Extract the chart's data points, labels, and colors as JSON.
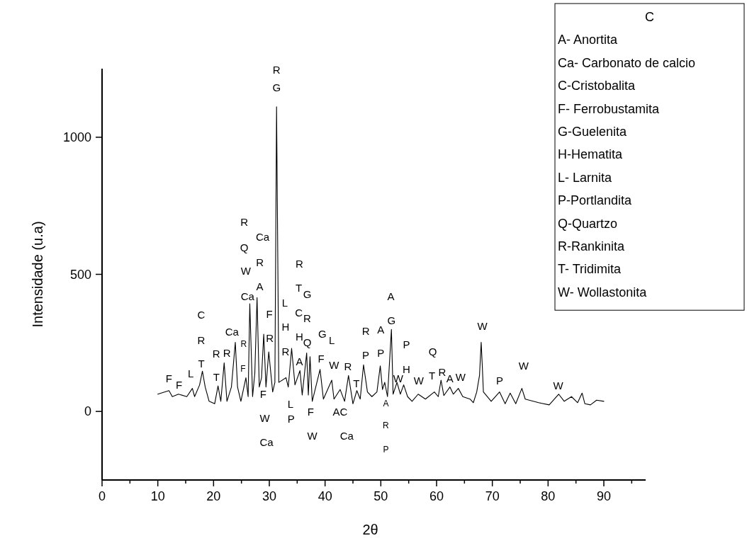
{
  "chart_data": {
    "type": "line",
    "xlabel": "2θ",
    "ylabel": "Intensidade (u.a)",
    "xlim": [
      0,
      97.5
    ],
    "ylim": [
      -250,
      1250
    ],
    "xticks": [
      0,
      {
        "value": 5,
        "label": null
      },
      10,
      {
        "value": 15,
        "label": null
      },
      20,
      {
        "value": 25,
        "label": null
      },
      30,
      {
        "value": 35,
        "label": null
      },
      40,
      {
        "value": 45,
        "label": null
      },
      50,
      {
        "value": 55,
        "label": null
      },
      60,
      {
        "value": 65,
        "label": null
      },
      70,
      {
        "value": 75,
        "label": null
      },
      80,
      {
        "value": 85,
        "label": null
      },
      90,
      {
        "value": 95,
        "label": null
      }
    ],
    "yticks": [
      0,
      500,
      1000
    ],
    "grid": false,
    "marker": "none",
    "line_style": "solid",
    "series": [
      {
        "color": "#000000",
        "x": [
          10,
          12.0,
          12.6,
          13.7,
          15.2,
          16.2,
          16.6,
          17.5,
          18.0,
          18.5,
          19.2,
          20.2,
          20.8,
          21.3,
          21.9,
          22.4,
          23.2,
          23.9,
          24.3,
          24.9,
          25.8,
          26.2,
          26.5,
          27.0,
          27.4,
          27.8,
          28.2,
          28.6,
          29.0,
          29.4,
          29.9,
          30.6,
          31.0,
          31.3,
          31.7,
          33.0,
          33.4,
          34.0,
          34.6,
          35.5,
          35.9,
          36.7,
          37.0,
          37.3,
          37.7,
          39.1,
          39.7,
          41.2,
          41.6,
          42.7,
          43.5,
          44.2,
          45.0,
          45.7,
          46.3,
          46.9,
          47.6,
          48.4,
          49.3,
          49.9,
          50.3,
          50.7,
          51.2,
          51.9,
          52.2,
          52.9,
          53.5,
          54.1,
          54.8,
          55.6,
          56.7,
          58.0,
          59.6,
          60.3,
          60.8,
          61.3,
          62.4,
          63.0,
          63.9,
          64.7,
          66.0,
          66.6,
          67.2,
          67.7,
          68.0,
          68.2,
          68.4,
          69.8,
          71.3,
          72.3,
          73.2,
          74.2,
          75.3,
          75.9,
          78.3,
          80.2,
          81.9,
          82.9,
          84.2,
          85.3,
          86.1,
          86.6,
          87.6,
          88.7,
          90
        ],
        "values": [
          63,
          76,
          54,
          63,
          54,
          84,
          54,
          97,
          147,
          89,
          37,
          28,
          93,
          37,
          177,
          37,
          89,
          252,
          89,
          37,
          123,
          54,
          393,
          54,
          140,
          415,
          89,
          123,
          282,
          89,
          217,
          71,
          106,
          1111,
          106,
          123,
          89,
          230,
          97,
          149,
          60,
          213,
          60,
          200,
          37,
          153,
          45,
          114,
          45,
          80,
          37,
          131,
          28,
          76,
          45,
          170,
          71,
          54,
          71,
          166,
          80,
          106,
          54,
          299,
          63,
          106,
          63,
          97,
          54,
          37,
          63,
          45,
          71,
          54,
          114,
          58,
          89,
          63,
          84,
          54,
          45,
          32,
          71,
          131,
          252,
          166,
          71,
          37,
          71,
          28,
          67,
          28,
          84,
          45,
          32,
          24,
          63,
          37,
          54,
          32,
          67,
          28,
          24,
          41,
          37
        ]
      }
    ],
    "annotations": [
      "R",
      "G",
      "F",
      "F",
      "L",
      "T",
      "R",
      "C",
      "T",
      "R",
      "R",
      "Ca",
      "R",
      "F",
      "R",
      "Q",
      "W",
      "Ca",
      "Ca",
      "R",
      "A",
      "F",
      "R",
      "F",
      "W",
      "Ca",
      "L",
      "H",
      "R",
      "L",
      "P",
      "R",
      "T",
      "G",
      "C",
      "R",
      "H",
      "Q",
      "A",
      "G",
      "L",
      "F",
      "W",
      "R",
      "T",
      "F",
      "W",
      "AC",
      "Ca",
      "R",
      "P",
      "A",
      "P",
      "A",
      "G",
      "A",
      "R",
      "P",
      "W",
      "P",
      "H",
      "W",
      "Q",
      "T",
      "R",
      "A",
      "W",
      "W",
      "P",
      "W",
      "W",
      "C",
      "A- Anortita",
      "Ca- Carbonato de calcio",
      "C-Cristobalita",
      "F- Ferrobustamita",
      "G-Guelenita",
      "H-Hematita",
      "L- Larnita",
      "P-Portlandita",
      "Q-Quartzo",
      "R-Rankinita",
      "T- Tridimita",
      "W- Wollastonita"
    ]
  }
}
